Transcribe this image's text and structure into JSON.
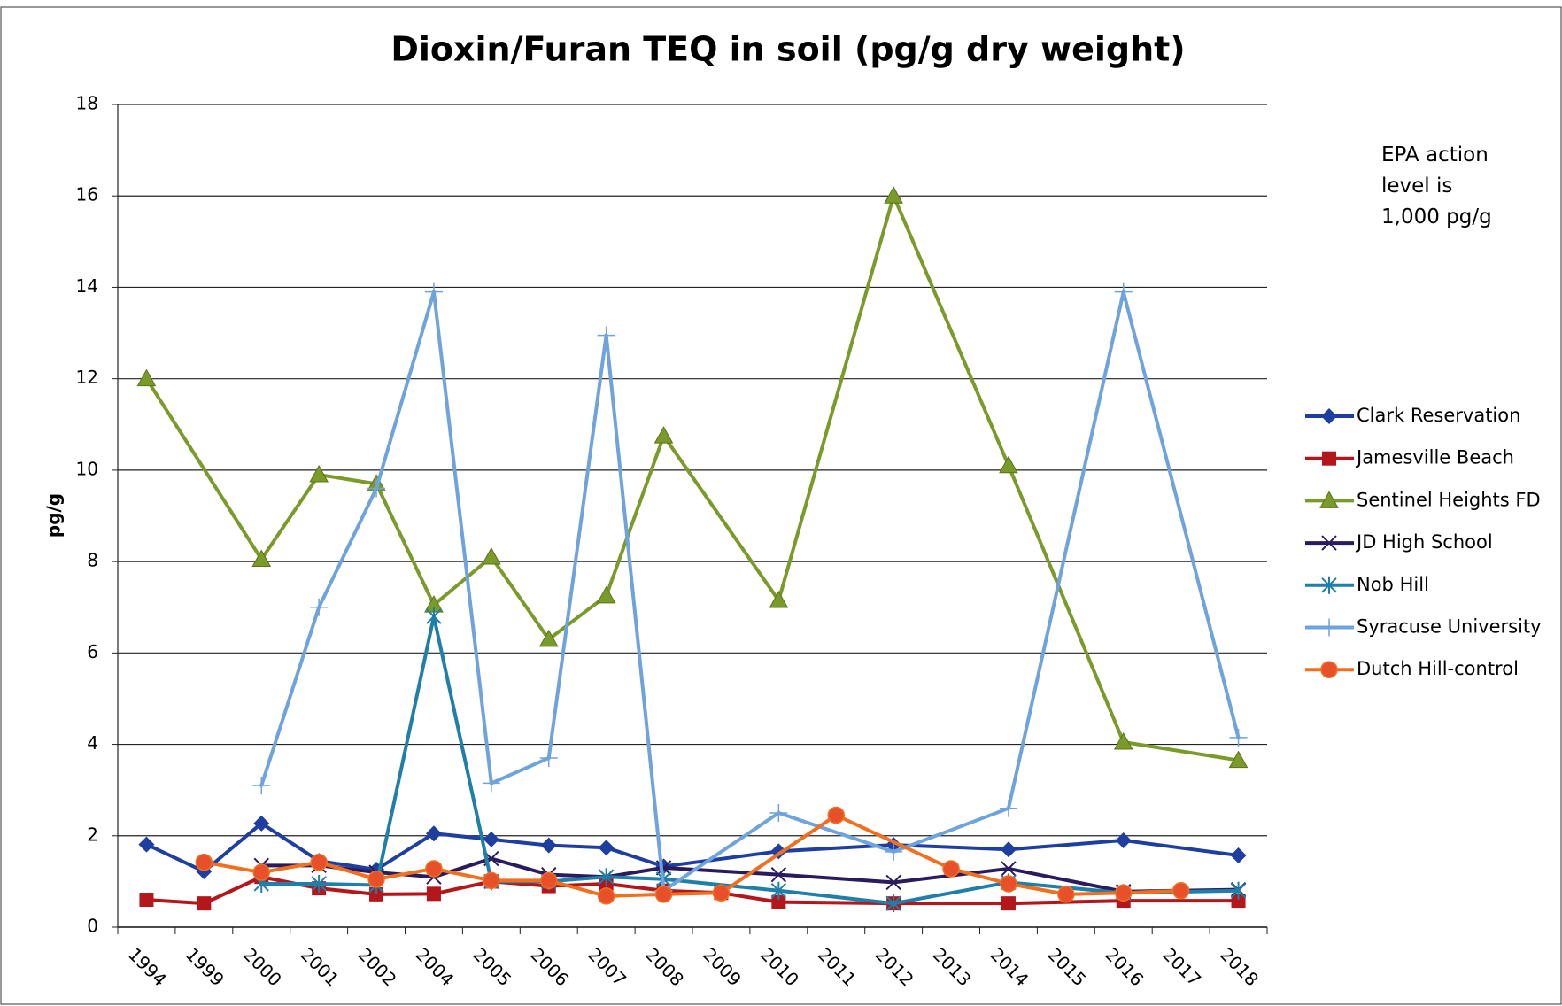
{
  "chart_data": {
    "type": "line",
    "title": "Dioxin/Furan TEQ in soil (pg/g dry weight)",
    "y_label": "pg/g",
    "annotation": "EPA action level is 1,000 pg/g",
    "categories": [
      "1994",
      "1999",
      "2000",
      "2001",
      "2002",
      "2004",
      "2005",
      "2006",
      "2007",
      "2008",
      "2009",
      "2010",
      "2011",
      "2012",
      "2013",
      "2014",
      "2015",
      "2016",
      "2017",
      "2018"
    ],
    "ylim": [
      0,
      18
    ],
    "yticks": [
      0,
      2,
      4,
      6,
      8,
      10,
      12,
      14,
      16,
      18
    ],
    "grid": true,
    "connect_gaps": true,
    "legend": "right",
    "series": [
      {
        "name": "Clark Reservation",
        "color": "#1f3fa0",
        "marker": "diamond",
        "values": [
          1.81,
          1.22,
          2.27,
          1.45,
          1.26,
          2.05,
          1.92,
          1.79,
          1.74,
          1.33,
          null,
          1.66,
          null,
          1.8,
          null,
          1.7,
          null,
          1.9,
          null,
          1.57
        ]
      },
      {
        "name": "Jamesville Beach",
        "color": "#b3161b",
        "marker": "square",
        "values": [
          0.6,
          0.52,
          1.1,
          0.85,
          0.72,
          0.73,
          1.0,
          0.9,
          0.95,
          0.8,
          0.75,
          0.55,
          null,
          0.52,
          null,
          0.52,
          null,
          0.58,
          null,
          0.58
        ]
      },
      {
        "name": "Sentinel Heights FD",
        "color": "#7a9a2a",
        "marker": "triangle",
        "values": [
          12.0,
          null,
          8.05,
          9.9,
          9.7,
          7.05,
          8.1,
          6.3,
          7.25,
          10.75,
          null,
          7.15,
          null,
          16.0,
          null,
          10.1,
          null,
          4.05,
          null,
          3.65
        ]
      },
      {
        "name": "JD High School",
        "color": "#2a1a5e",
        "marker": "x",
        "values": [
          null,
          null,
          1.35,
          1.35,
          1.2,
          1.1,
          1.5,
          1.15,
          1.1,
          1.3,
          null,
          1.15,
          null,
          0.98,
          null,
          1.28,
          null,
          0.78,
          null,
          0.82
        ]
      },
      {
        "name": "Nob Hill",
        "color": "#1f7fa8",
        "marker": "star",
        "values": [
          null,
          null,
          0.95,
          0.95,
          0.92,
          6.8,
          1.0,
          1.0,
          1.1,
          1.05,
          null,
          0.8,
          null,
          0.52,
          null,
          0.98,
          null,
          0.75,
          null,
          0.8
        ]
      },
      {
        "name": "Syracuse University",
        "color": "#6fa3dc",
        "marker": "plus",
        "values": [
          null,
          null,
          3.1,
          7.0,
          9.6,
          13.9,
          3.15,
          3.7,
          12.95,
          0.8,
          null,
          2.5,
          null,
          1.65,
          null,
          2.6,
          null,
          13.9,
          null,
          4.15
        ]
      },
      {
        "name": "Dutch Hill-control",
        "color": "#f07020",
        "marker": "circle",
        "values": [
          null,
          1.42,
          1.2,
          1.42,
          1.05,
          1.28,
          1.02,
          1.02,
          0.68,
          0.72,
          0.75,
          null,
          2.45,
          null,
          1.28,
          0.95,
          0.72,
          0.75,
          0.8,
          null
        ]
      }
    ]
  }
}
